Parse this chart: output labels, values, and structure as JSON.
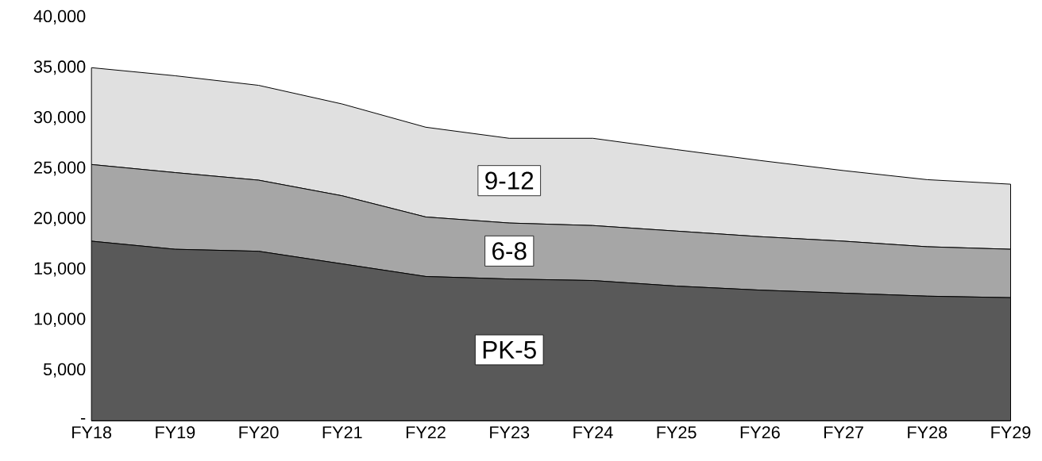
{
  "chart_data": {
    "type": "area",
    "stacked": true,
    "categories": [
      "FY18",
      "FY19",
      "FY20",
      "FY21",
      "FY22",
      "FY23",
      "FY24",
      "FY25",
      "FY26",
      "FY27",
      "FY28",
      "FY29"
    ],
    "series": [
      {
        "name": "PK-5",
        "color": "#595959",
        "values": [
          17800,
          17000,
          16800,
          15550,
          14300,
          14050,
          13900,
          13350,
          12950,
          12650,
          12350,
          12200
        ]
      },
      {
        "name": "6-8",
        "color": "#a6a6a6",
        "values": [
          7600,
          7600,
          7050,
          6750,
          5900,
          5550,
          5450,
          5450,
          5300,
          5150,
          4900,
          4800
        ]
      },
      {
        "name": "9-12",
        "color": "#e0e0e0",
        "values": [
          9600,
          9600,
          9400,
          9100,
          8900,
          8400,
          8650,
          8080,
          7550,
          7000,
          6650,
          6450
        ]
      }
    ],
    "ylim": [
      0,
      40000
    ],
    "yticks": [
      {
        "value": 0,
        "label": "-"
      },
      {
        "value": 5000,
        "label": "5,000"
      },
      {
        "value": 10000,
        "label": "10,000"
      },
      {
        "value": 15000,
        "label": "15,000"
      },
      {
        "value": 20000,
        "label": "20,000"
      },
      {
        "value": 25000,
        "label": "25,000"
      },
      {
        "value": 30000,
        "label": "30,000"
      },
      {
        "value": 35000,
        "label": "35,000"
      },
      {
        "value": 40000,
        "label": "40,000"
      }
    ],
    "grid": false,
    "legend": false
  }
}
